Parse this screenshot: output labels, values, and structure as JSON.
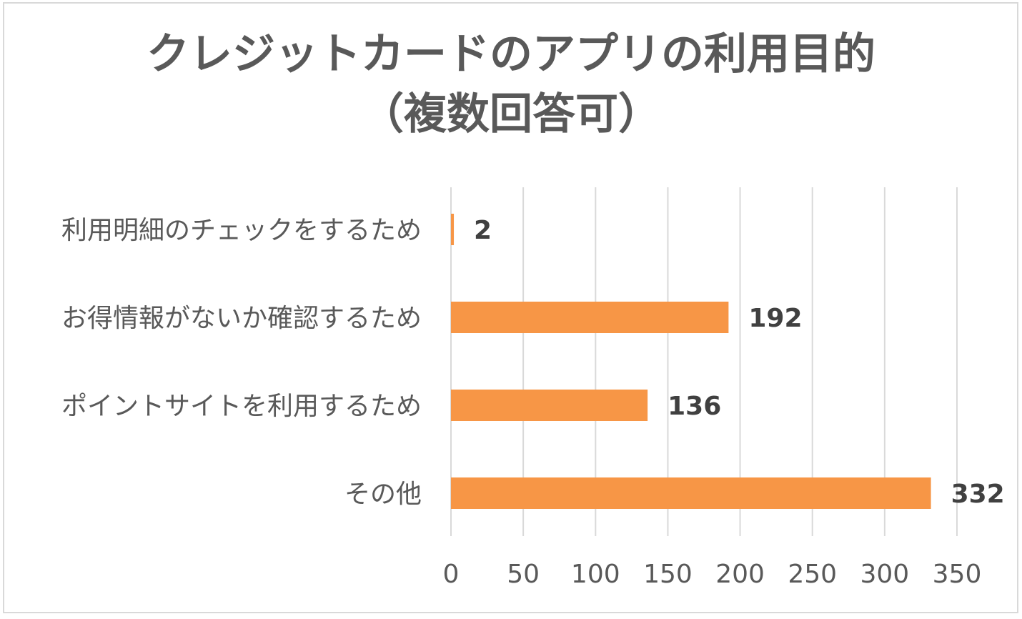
{
  "chart_data": {
    "type": "bar",
    "orientation": "horizontal",
    "title_line1": "クレジットカードのアプリの利用目的",
    "title_line2": "（複数回答可）",
    "categories": [
      "利用明細のチェックをするため",
      "お得情報がないか確認するため",
      "ポイントサイトを利用するため",
      "その他"
    ],
    "values": [
      2,
      192,
      136,
      332
    ],
    "xlim": [
      0,
      350
    ],
    "xticks": [
      0,
      50,
      100,
      150,
      200,
      250,
      300,
      350
    ],
    "xtick_labels": [
      "0",
      "50",
      "100",
      "150",
      "200",
      "250",
      "300",
      "350"
    ],
    "data_labels": [
      "2",
      "192",
      "136",
      "332"
    ],
    "grid": true,
    "legend": "none",
    "bar_color": "#F79646",
    "grid_color": "#d9d9d9",
    "text_color": "#595959"
  }
}
